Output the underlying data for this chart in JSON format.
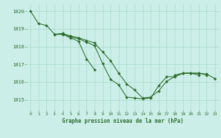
{
  "title": "Graphe pression niveau de la mer (hPa)",
  "bg_color": "#cceee8",
  "grid_color": "#aaddcc",
  "line_color": "#2d6e2d",
  "marker_color": "#2d6e2d",
  "xlim": [
    -0.5,
    23.5
  ],
  "ylim": [
    1014.4,
    1020.4
  ],
  "yticks": [
    1015,
    1016,
    1017,
    1018,
    1019,
    1020
  ],
  "xticks": [
    0,
    1,
    2,
    3,
    4,
    5,
    6,
    7,
    8,
    9,
    10,
    11,
    12,
    13,
    14,
    15,
    16,
    17,
    18,
    19,
    20,
    21,
    22,
    23
  ],
  "series": [
    [
      1020.0,
      1019.3,
      1019.2,
      1018.7,
      1018.7,
      1018.5,
      1018.3,
      1017.3,
      1016.7,
      null,
      null,
      null,
      null,
      null,
      null,
      null,
      null,
      null,
      null,
      null,
      null,
      null,
      null,
      null
    ],
    [
      null,
      null,
      null,
      1018.7,
      1018.7,
      1018.55,
      1018.45,
      1018.25,
      1018.05,
      1017.05,
      1016.15,
      1015.85,
      1015.15,
      1015.1,
      1015.05,
      1015.1,
      1015.8,
      1016.3,
      1016.3,
      1016.5,
      1016.5,
      1016.4,
      null,
      null
    ],
    [
      null,
      null,
      null,
      1018.7,
      1018.75,
      1018.6,
      1018.5,
      1018.35,
      1018.2,
      1017.7,
      1017.2,
      1016.5,
      1015.9,
      1015.55,
      1015.1,
      1015.15,
      1015.5,
      1016.05,
      1016.3,
      1016.5,
      1016.5,
      1016.5,
      1016.4,
      null
    ],
    [
      null,
      null,
      null,
      null,
      null,
      null,
      null,
      null,
      null,
      null,
      null,
      null,
      null,
      null,
      null,
      null,
      null,
      null,
      1016.4,
      1016.5,
      1016.5,
      1016.5,
      1016.45,
      1016.2
    ]
  ]
}
